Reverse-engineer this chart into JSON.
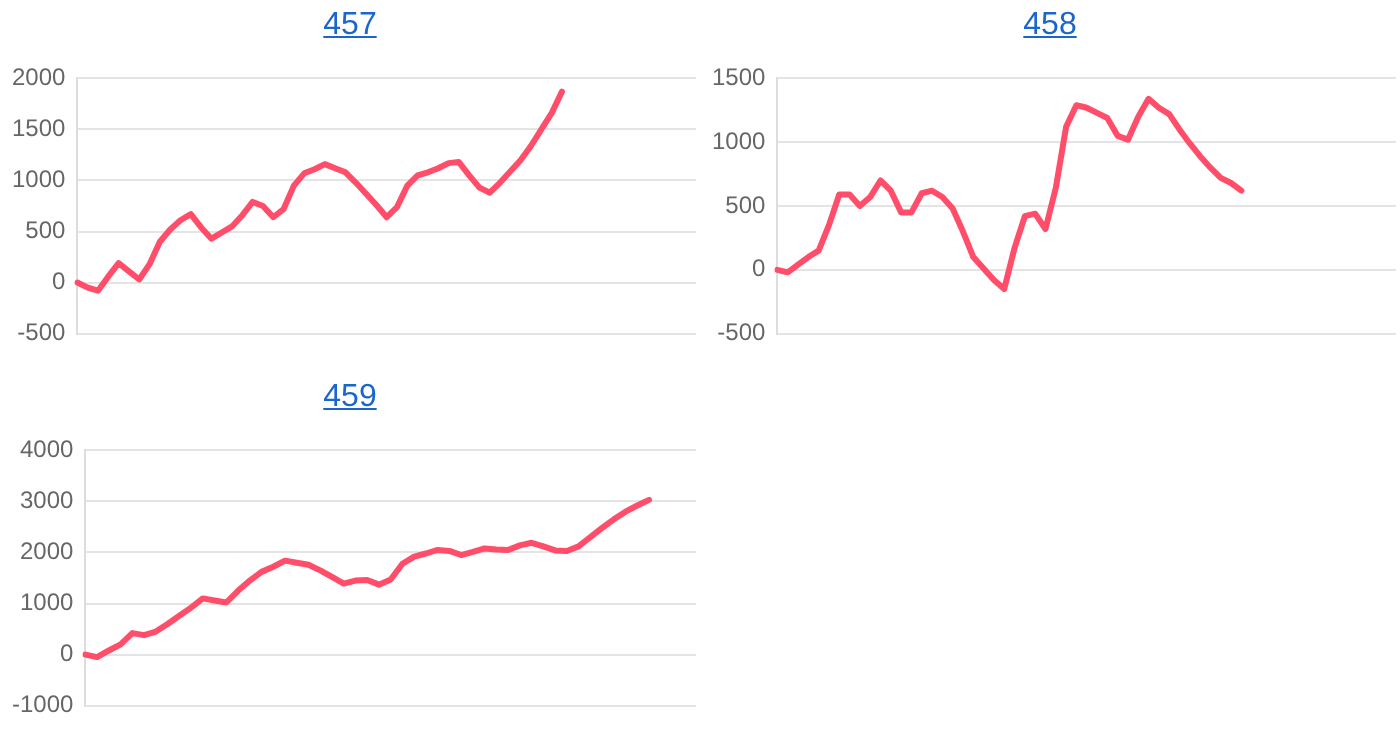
{
  "chart_data": [
    {
      "type": "line",
      "title": "457",
      "categories": [
        null,
        null,
        null,
        null,
        null,
        null,
        null,
        null,
        null,
        null,
        null,
        null,
        null,
        null,
        null,
        null,
        null,
        null,
        null,
        null,
        null,
        null,
        null,
        null,
        null,
        null,
        null,
        null,
        null,
        null,
        null,
        null,
        null,
        null,
        null,
        null,
        null,
        null,
        null,
        null,
        null,
        null,
        null,
        null,
        null,
        null,
        null,
        null,
        null,
        null,
        null,
        null,
        null,
        null,
        null,
        null,
        null,
        null,
        null,
        null,
        null
      ],
      "series": [
        {
          "color": "#ff4d6a",
          "values": [
            0,
            -50,
            -80,
            60,
            190,
            110,
            30,
            180,
            400,
            520,
            610,
            670,
            540,
            430,
            490,
            550,
            660,
            790,
            750,
            640,
            720,
            950,
            1070,
            1110,
            1160,
            1120,
            1080,
            980,
            870,
            760,
            640,
            740,
            950,
            1050,
            1080,
            1120,
            1170,
            1180,
            1050,
            930,
            880,
            980,
            1090,
            1200,
            1340,
            1500,
            1660,
            1870,
            null,
            null,
            null,
            null,
            null,
            null,
            null,
            null,
            null,
            null,
            null,
            null,
            null
          ]
        }
      ],
      "ylim": [
        -500,
        2000
      ],
      "yticks": [
        -500,
        0,
        500,
        1000,
        1500,
        2000
      ],
      "grid": "y",
      "tick_labels": "y",
      "marker": "none",
      "legend": false
    },
    {
      "type": "line",
      "title": "458",
      "categories": [
        null,
        null,
        null,
        null,
        null,
        null,
        null,
        null,
        null,
        null,
        null,
        null,
        null,
        null,
        null,
        null,
        null,
        null,
        null,
        null,
        null,
        null,
        null,
        null,
        null,
        null,
        null,
        null,
        null,
        null,
        null,
        null,
        null,
        null,
        null,
        null,
        null,
        null,
        null,
        null,
        null,
        null,
        null,
        null,
        null,
        null,
        null,
        null,
        null,
        null,
        null,
        null,
        null,
        null,
        null,
        null,
        null,
        null,
        null,
        null,
        null
      ],
      "series": [
        {
          "color": "#ff4d6a",
          "values": [
            0,
            -20,
            40,
            100,
            150,
            350,
            590,
            590,
            500,
            570,
            700,
            620,
            450,
            450,
            600,
            620,
            570,
            480,
            300,
            100,
            10,
            -80,
            -150,
            170,
            420,
            440,
            320,
            640,
            1120,
            1290,
            1270,
            1230,
            1190,
            1050,
            1020,
            1200,
            1340,
            1270,
            1220,
            1100,
            990,
            890,
            800,
            720,
            680,
            620,
            null,
            null,
            null,
            null,
            null,
            null,
            null,
            null,
            null,
            null,
            null,
            null,
            null,
            null,
            null
          ]
        }
      ],
      "ylim": [
        -500,
        1500
      ],
      "yticks": [
        -500,
        0,
        500,
        1000,
        1500
      ],
      "grid": "y",
      "tick_labels": "y",
      "marker": "none",
      "legend": false
    },
    {
      "type": "line",
      "title": "459",
      "categories": [
        null,
        null,
        null,
        null,
        null,
        null,
        null,
        null,
        null,
        null,
        null,
        null,
        null,
        null,
        null,
        null,
        null,
        null,
        null,
        null,
        null,
        null,
        null,
        null,
        null,
        null,
        null,
        null,
        null,
        null,
        null,
        null,
        null,
        null,
        null,
        null,
        null,
        null,
        null,
        null,
        null,
        null,
        null,
        null,
        null,
        null,
        null,
        null,
        null,
        null,
        null,
        null,
        null
      ],
      "series": [
        {
          "color": "#ff4d6a",
          "values": [
            0,
            -50,
            80,
            200,
            420,
            380,
            450,
            600,
            760,
            920,
            1100,
            1060,
            1020,
            1250,
            1450,
            1620,
            1720,
            1840,
            1800,
            1760,
            1650,
            1520,
            1390,
            1450,
            1460,
            1370,
            1470,
            1780,
            1920,
            1980,
            2050,
            2030,
            1950,
            2010,
            2080,
            2060,
            2050,
            2140,
            2190,
            2120,
            2040,
            2030,
            2120,
            2300,
            2480,
            2650,
            2800,
            2920,
            3030,
            null,
            null,
            null,
            null
          ]
        }
      ],
      "ylim": [
        -1000,
        4000
      ],
      "yticks": [
        -1000,
        0,
        1000,
        2000,
        3000,
        4000
      ],
      "grid": "y",
      "tick_labels": "y",
      "marker": "none",
      "legend": false
    }
  ]
}
